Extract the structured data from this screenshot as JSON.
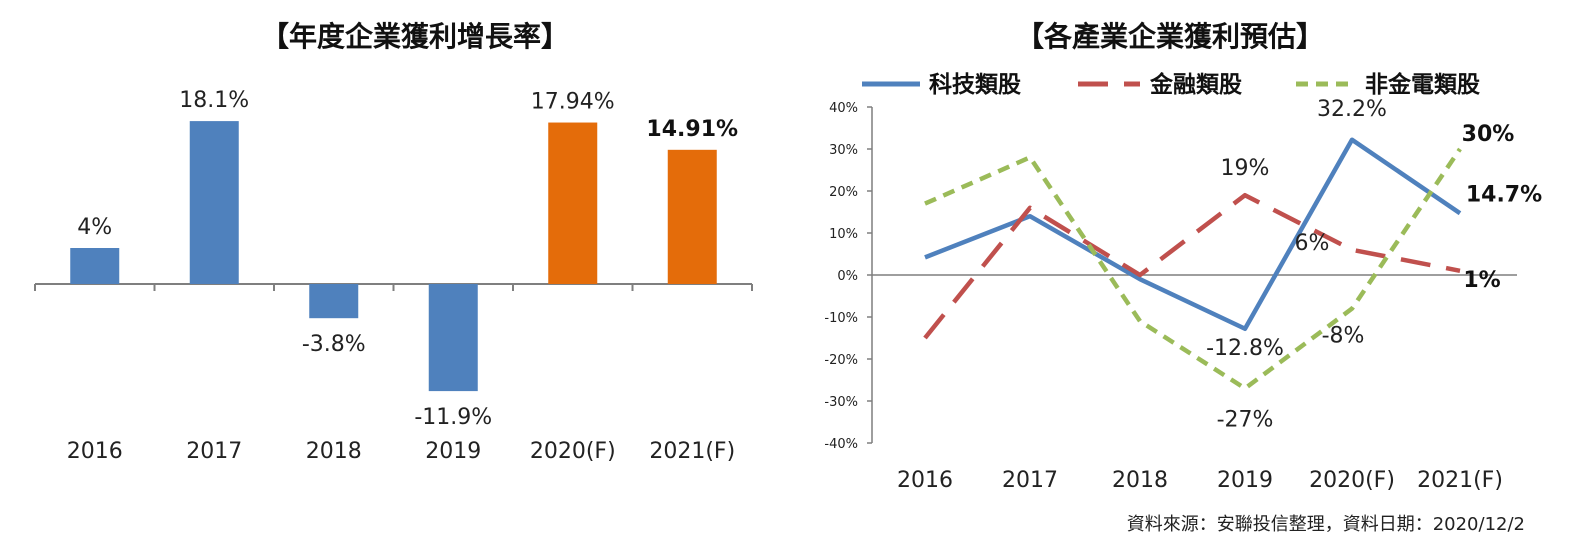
{
  "chart_data": [
    {
      "type": "bar",
      "title": "【年度企業獲利增長率】",
      "categories": [
        "2016",
        "2017",
        "2018",
        "2019",
        "2020(F)",
        "2021(F)"
      ],
      "values": [
        4,
        18.1,
        -3.8,
        -11.9,
        17.94,
        14.91
      ],
      "data_labels": [
        "4%",
        "18.1%",
        "-3.8%",
        "-11.9%",
        "17.94%",
        "14.91%"
      ],
      "bold_labels": [
        false,
        false,
        false,
        false,
        false,
        true
      ],
      "bar_colors": [
        "#4f81bd",
        "#4f81bd",
        "#4f81bd",
        "#4f81bd",
        "#e46c0a",
        "#e46c0a"
      ],
      "ylim": [
        -14,
        20
      ],
      "grid": false
    },
    {
      "type": "line",
      "title": "【各產業企業獲利預估】",
      "categories": [
        "2016",
        "2017",
        "2018",
        "2019",
        "2020(F)",
        "2021(F)"
      ],
      "yticks": [
        "40%",
        "30%",
        "20%",
        "10%",
        "0%",
        "-10%",
        "-20%",
        "-30%",
        "-40%"
      ],
      "ylim": [
        -40,
        40
      ],
      "legend_position": "top",
      "grid": false,
      "series": [
        {
          "name": "科技類股",
          "color": "#4f81bd",
          "dash": "solid",
          "values": [
            4.2,
            14,
            -1,
            -12.8,
            32.2,
            14.7
          ],
          "labels": [
            {
              "index": 3,
              "text": "-12.8%",
              "bold": false
            },
            {
              "index": 4,
              "text": "32.2%",
              "bold": false
            },
            {
              "index": 5,
              "text": "14.7%",
              "bold": true
            }
          ]
        },
        {
          "name": "金融類股",
          "color": "#c0504d",
          "dash": "long",
          "values": [
            -15,
            16,
            0,
            19,
            6,
            1
          ],
          "labels": [
            {
              "index": 3,
              "text": "19%",
              "bold": false
            },
            {
              "index": 4,
              "text": "6%",
              "bold": false
            },
            {
              "index": 5,
              "text": "1%",
              "bold": true
            }
          ]
        },
        {
          "name": "非金電類股",
          "color": "#9bbb59",
          "dash": "short",
          "values": [
            17,
            28,
            -11,
            -27,
            -8,
            30
          ],
          "labels": [
            {
              "index": 3,
              "text": "-27%",
              "bold": false
            },
            {
              "index": 4,
              "text": "-8%",
              "bold": false
            },
            {
              "index": 5,
              "text": "30%",
              "bold": true
            }
          ]
        }
      ]
    }
  ],
  "source_note": "資料來源：安聯投信整理，資料日期：2020/12/2"
}
